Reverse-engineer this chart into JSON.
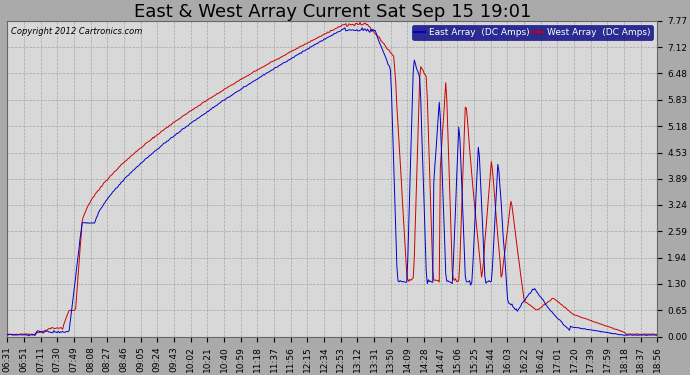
{
  "title": "East & West Array Current Sat Sep 15 19:01",
  "copyright": "Copyright 2012 Cartronics.com",
  "ylim": [
    0.0,
    7.77
  ],
  "yticks": [
    0.0,
    0.65,
    1.3,
    1.94,
    2.59,
    3.24,
    3.89,
    4.53,
    5.18,
    5.83,
    6.48,
    7.12,
    7.77
  ],
  "east_color": "#0000cc",
  "west_color": "#cc0000",
  "legend_east": "East Array  (DC Amps)",
  "legend_west": "West Array  (DC Amps)",
  "background_color": "#aaaaaa",
  "plot_background": "#d8d8d8",
  "grid_color": "#bbbbbb",
  "title_fontsize": 13,
  "tick_fontsize": 6.5,
  "x_labels": [
    "06:31",
    "06:51",
    "07:11",
    "07:30",
    "07:49",
    "08:08",
    "08:27",
    "08:46",
    "09:05",
    "09:24",
    "09:43",
    "10:02",
    "10:21",
    "10:40",
    "10:59",
    "11:18",
    "11:37",
    "11:56",
    "12:15",
    "12:34",
    "12:53",
    "13:12",
    "13:31",
    "13:50",
    "14:09",
    "14:28",
    "14:47",
    "15:06",
    "15:25",
    "15:44",
    "16:03",
    "16:22",
    "16:42",
    "17:01",
    "17:20",
    "17:39",
    "17:59",
    "18:18",
    "18:37",
    "18:56"
  ]
}
